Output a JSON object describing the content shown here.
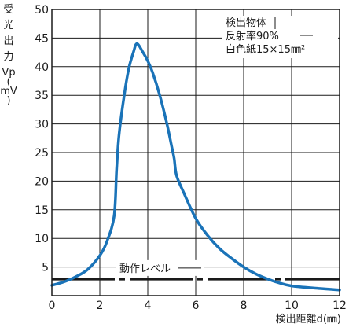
{
  "chart_data": {
    "type": "line",
    "xlabel": "検出距離d(㎜)",
    "ylabel_lines": [
      "受",
      "光",
      "出",
      "力",
      "Vp",
      "(",
      "mV",
      ")"
    ],
    "xlim": [
      0,
      12
    ],
    "ylim": [
      0,
      50
    ],
    "x_ticks": [
      "0",
      "2",
      "4",
      "6",
      "8",
      "10",
      "12"
    ],
    "y_ticks": [
      "5",
      "10",
      "15",
      "20",
      "25",
      "30",
      "35",
      "40",
      "45",
      "50"
    ],
    "grid": true,
    "annotation_lines": [
      "検出物体",
      "反射率90%",
      "白色紙15×15㎜²"
    ],
    "threshold": {
      "label": "動作レベル",
      "value": 2.9,
      "color": "#1a1a1a"
    },
    "series": [
      {
        "color": "#1a73b8",
        "x": [
          0,
          0.5,
          1,
          1.5,
          2,
          2.3,
          2.6,
          2.7,
          2.8,
          3.0,
          3.2,
          3.4,
          3.55,
          3.8,
          4.0,
          4.2,
          4.5,
          4.8,
          5.0,
          5.1,
          5.2,
          5.5,
          6.0,
          6.5,
          7.0,
          7.5,
          8.0,
          8.5,
          9.0,
          9.5,
          10.0,
          11.0,
          12.0
        ],
        "y": [
          1.8,
          2.4,
          3.3,
          4.6,
          7.0,
          9.5,
          14.0,
          22.0,
          28.0,
          34.5,
          39.5,
          42.5,
          44.0,
          42.5,
          41.0,
          39.0,
          35.0,
          30.0,
          26.0,
          24.0,
          21.0,
          18.0,
          13.5,
          10.5,
          8.2,
          6.5,
          5.0,
          3.8,
          2.9,
          2.2,
          1.7,
          1.3,
          1.0
        ]
      }
    ]
  }
}
